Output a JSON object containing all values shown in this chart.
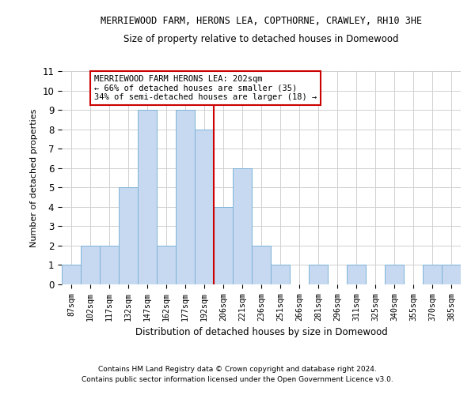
{
  "title": "MERRIEWOOD FARM, HERONS LEA, COPTHORNE, CRAWLEY, RH10 3HE",
  "subtitle": "Size of property relative to detached houses in Domewood",
  "xlabel": "Distribution of detached houses by size in Domewood",
  "ylabel": "Number of detached properties",
  "categories": [
    "87sqm",
    "102sqm",
    "117sqm",
    "132sqm",
    "147sqm",
    "162sqm",
    "177sqm",
    "192sqm",
    "206sqm",
    "221sqm",
    "236sqm",
    "251sqm",
    "266sqm",
    "281sqm",
    "296sqm",
    "311sqm",
    "325sqm",
    "340sqm",
    "355sqm",
    "370sqm",
    "385sqm"
  ],
  "values": [
    1,
    2,
    2,
    5,
    9,
    2,
    9,
    8,
    4,
    6,
    2,
    1,
    0,
    1,
    0,
    1,
    0,
    1,
    0,
    1,
    1
  ],
  "bar_color": "#c6d9f0",
  "bar_edge_color": "#7eb3d8",
  "vline_x": 7.5,
  "vline_color": "#cc0000",
  "ylim": [
    0,
    11
  ],
  "yticks": [
    0,
    1,
    2,
    3,
    4,
    5,
    6,
    7,
    8,
    9,
    10,
    11
  ],
  "annotation_text": "MERRIEWOOD FARM HERONS LEA: 202sqm\n← 66% of detached houses are smaller (35)\n34% of semi-detached houses are larger (18) →",
  "annotation_box_color": "#ffffff",
  "annotation_box_edge": "#cc0000",
  "footer1": "Contains HM Land Registry data © Crown copyright and database right 2024.",
  "footer2": "Contains public sector information licensed under the Open Government Licence v3.0.",
  "background_color": "#ffffff",
  "grid_color": "#d0d0d0"
}
